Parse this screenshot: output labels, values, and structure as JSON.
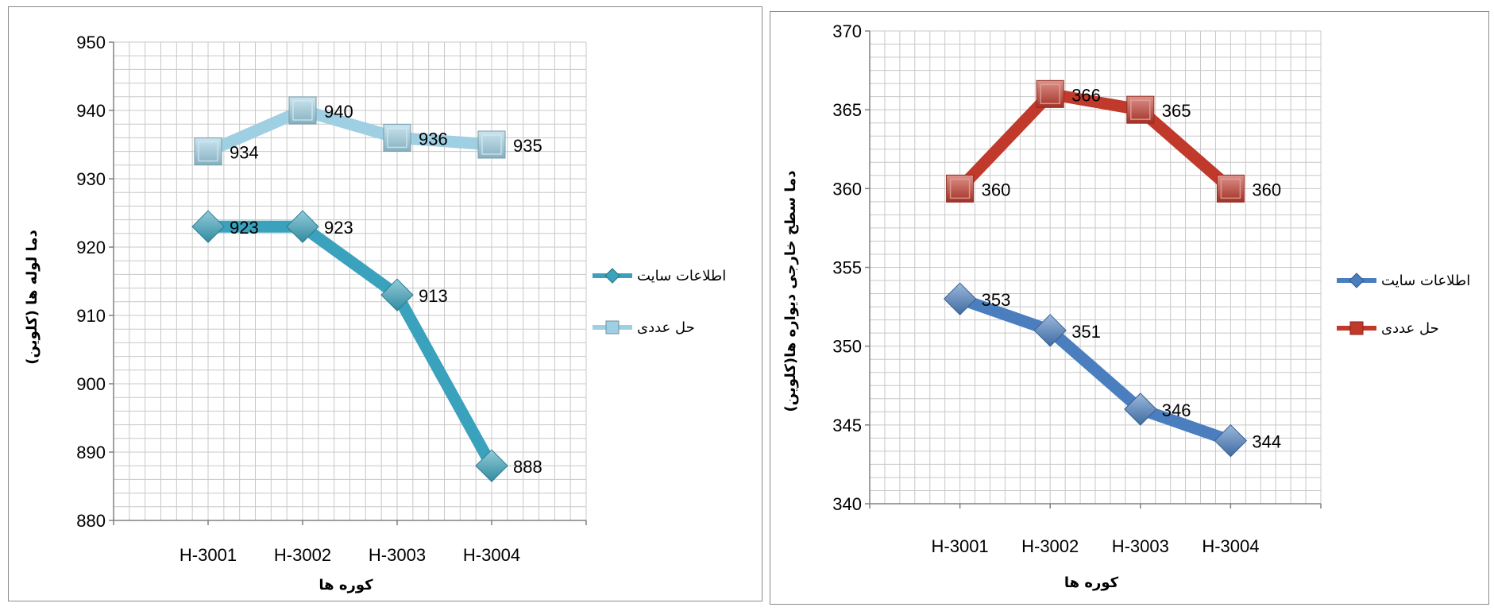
{
  "chart_data": [
    {
      "type": "line",
      "categories": [
        "H-3001",
        "H-3002",
        "H-3003",
        "H-3004"
      ],
      "series": [
        {
          "name": "اطلاعات سایت",
          "values": [
            923,
            923,
            913,
            888
          ],
          "color": "#3aa2bc",
          "marker": "diamond"
        },
        {
          "name": "حل عددی",
          "values": [
            934,
            940,
            936,
            935
          ],
          "color": "#9ecfe2",
          "marker": "square"
        }
      ],
      "ylim": [
        880,
        950
      ],
      "yticks": [
        880,
        890,
        900,
        910,
        920,
        930,
        940,
        950
      ],
      "ylabel": "دما لوله ها   (کلوین)",
      "xlabel": "کوره ها",
      "grid": true,
      "legend": "right"
    },
    {
      "type": "line",
      "categories": [
        "H-3001",
        "H-3002",
        "H-3003",
        "H-3004"
      ],
      "series": [
        {
          "name": "اطلاعات سایت",
          "values": [
            353,
            351,
            346,
            344
          ],
          "color": "#4a7ebf",
          "marker": "diamond"
        },
        {
          "name": "حل عددی",
          "values": [
            360,
            366,
            365,
            360
          ],
          "color": "#c0392b",
          "marker": "square"
        }
      ],
      "ylim": [
        340,
        370
      ],
      "yticks": [
        340,
        345,
        350,
        355,
        360,
        365,
        370
      ],
      "ylabel": "دما سطح خارجی دیواره ها(کلوین)",
      "xlabel": "کوره ها",
      "grid": true,
      "legend": "right"
    }
  ]
}
